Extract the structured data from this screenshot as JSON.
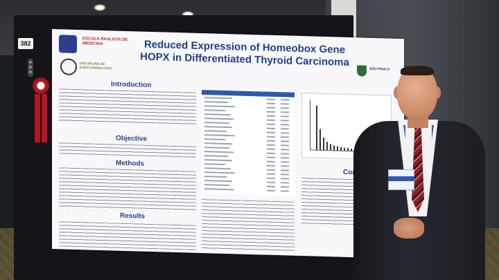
{
  "board": {
    "number": "382"
  },
  "poster": {
    "title": "Reduced Expression of Homeobox Gene HOPX in Differentiated Thyroid Carcinoma",
    "sections": {
      "introduction": "Introduction",
      "objective": "Objective",
      "methods": "Methods",
      "results": "Results",
      "conclusion": "Conclu"
    },
    "logos": {
      "logo_left_top": "UNIFESP",
      "logo_left_red": "ESCOLA PAULISTA DE MEDICINA",
      "logo_left_green": "DISCIPLINA DE ENDOCRINOLOGIA",
      "logo_right": "SÃO PAULO"
    }
  },
  "colors": {
    "poster_title": "#1f3e8a",
    "ribbon": "#b51723",
    "tie": "#8b2228",
    "table_header": "#2d5aa8"
  }
}
